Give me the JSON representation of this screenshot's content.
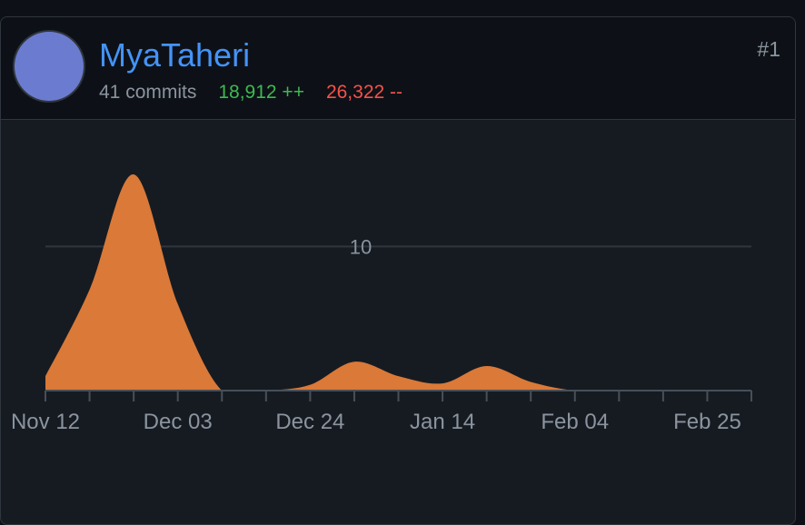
{
  "contributor": {
    "name": "MyaTaheri",
    "rank": "#1",
    "commits_text": "41 commits",
    "additions_text": "18,912 ++",
    "deletions_text": "26,322 --"
  },
  "colors": {
    "area": "#da7938",
    "name": "#4493f8",
    "additions": "#3fb950",
    "deletions": "#f85149"
  },
  "chart_data": {
    "type": "area",
    "x_tick_labels": [
      "Nov 12",
      "Dec 03",
      "Dec 24",
      "Jan 14",
      "Feb 04",
      "Feb 25"
    ],
    "gridline_label": "10",
    "xlim": [
      "2023-11-12",
      "2024-03-03"
    ],
    "ylim": [
      0,
      15
    ],
    "x": [
      "2023-11-12",
      "2023-11-19",
      "2023-11-26",
      "2023-12-03",
      "2023-12-10",
      "2023-12-17",
      "2023-12-24",
      "2023-12-31",
      "2024-01-07",
      "2024-01-14",
      "2024-01-21",
      "2024-01-28",
      "2024-02-04",
      "2024-02-11",
      "2024-02-18",
      "2024-02-25",
      "2024-03-03"
    ],
    "values": [
      1,
      7,
      15,
      6,
      0,
      0,
      0.4,
      2,
      1,
      0.5,
      1.7,
      0.6,
      0,
      0,
      0,
      0,
      0
    ],
    "grid": true
  }
}
